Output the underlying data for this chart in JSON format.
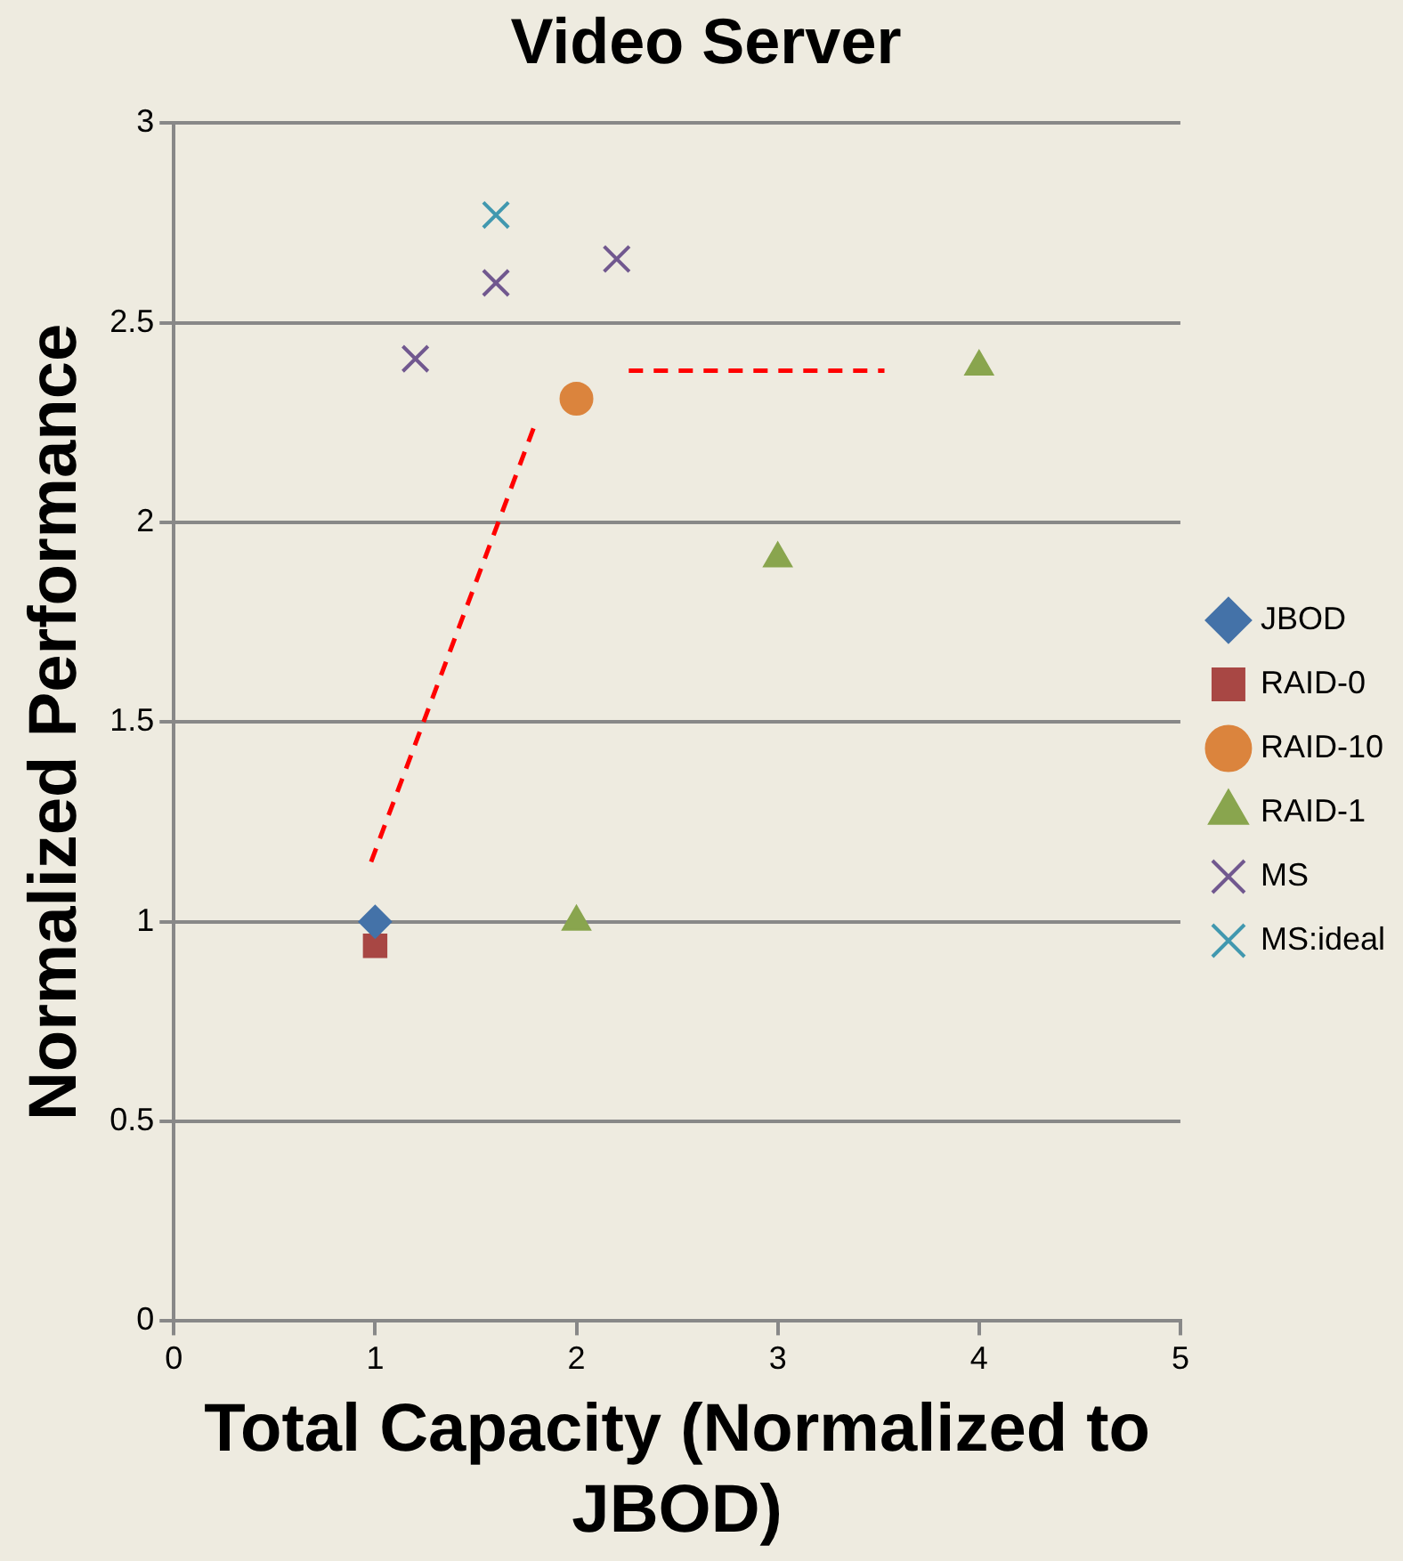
{
  "chart_data": {
    "type": "scatter",
    "title": "Video Server",
    "xlabel": "Total Capacity (Normalized to JBOD)",
    "ylabel": "Normalized Performance",
    "xlim": [
      0,
      5
    ],
    "xticks": [
      0,
      1,
      2,
      3,
      4,
      5
    ],
    "ylim": [
      0,
      3
    ],
    "yticks": [
      0,
      0.5,
      1,
      1.5,
      2,
      2.5,
      3
    ],
    "grid": "y",
    "legend": "right",
    "series": [
      {
        "name": "JBOD",
        "color": "#4472a8",
        "marker": "diamond",
        "x": [
          1
        ],
        "values": [
          1
        ]
      },
      {
        "name": "RAID-0",
        "color": "#a84744",
        "marker": "square",
        "x": [
          1
        ],
        "values": [
          0.94
        ]
      },
      {
        "name": "RAID-10",
        "color": "#db843d",
        "marker": "circle",
        "x": [
          2
        ],
        "values": [
          2.31
        ]
      },
      {
        "name": "RAID-1",
        "color": "#89a54e",
        "marker": "triangle",
        "x": [
          2,
          3,
          4
        ],
        "values": [
          1,
          1.91,
          2.39
        ]
      },
      {
        "name": "MS",
        "color": "#71588f",
        "marker": "cross",
        "x": [
          1.2,
          1.6,
          2.2
        ],
        "values": [
          2.41,
          2.6,
          2.66
        ]
      },
      {
        "name": "MS:ideal",
        "color": "#4198af",
        "marker": "cross",
        "x": [
          1.6
        ],
        "values": [
          2.77
        ]
      },
      {
        "type": "line",
        "color": "#ff0000",
        "line_style": "dashed",
        "marker": "none",
        "x": [
          0.98,
          1.79
        ],
        "values": [
          1.15,
          2.24
        ]
      },
      {
        "type": "line",
        "color": "#ff0000",
        "line_style": "dashed",
        "marker": "none",
        "x": [
          2.26,
          3.53
        ],
        "values": [
          2.38,
          2.38
        ]
      }
    ]
  }
}
